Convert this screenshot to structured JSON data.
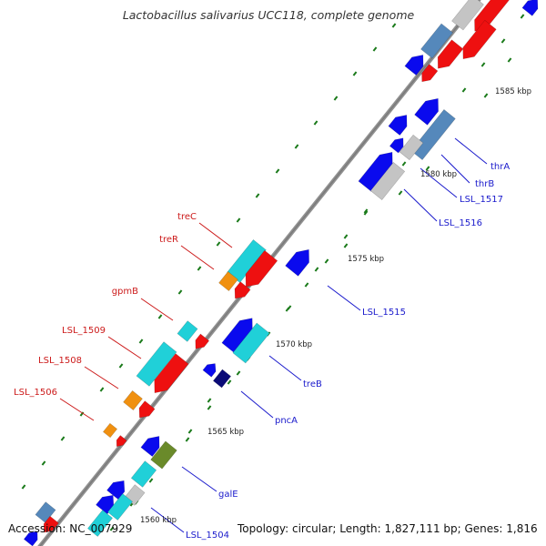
{
  "title": "Lactobacillus salivarius UCC118, complete genome",
  "accession": "Accession: NC_007929",
  "summary": "Topology: circular; Length: 1,827,111 bp; Genes: 1,816",
  "colors": {
    "axis": "#888888",
    "tick": "#1a7a1a",
    "blue": "#0a0aee",
    "navy": "#0a0a77",
    "red": "#ee1010",
    "cyan": "#20d0d8",
    "orange": "#f09010",
    "steel": "#5588bb",
    "silver": "#c4c4c4",
    "olive": "#6a8a2a",
    "label_forward": "#1a1acc",
    "label_reverse": "#cc1a1a"
  },
  "scale_labels": [
    "1560 kbp",
    "1565 kbp",
    "1570 kbp",
    "1575 kbp",
    "1580 kbp",
    "1585 kbp"
  ],
  "forward_labels": [
    "thrA",
    "thrB",
    "LSL_1517",
    "LSL_1516",
    "LSL_1515",
    "treB",
    "pncA",
    "galE",
    "LSL_1504"
  ],
  "reverse_labels": [
    "treC",
    "treR",
    "gpmB",
    "LSL_1509",
    "LSL_1508",
    "LSL_1506"
  ]
}
